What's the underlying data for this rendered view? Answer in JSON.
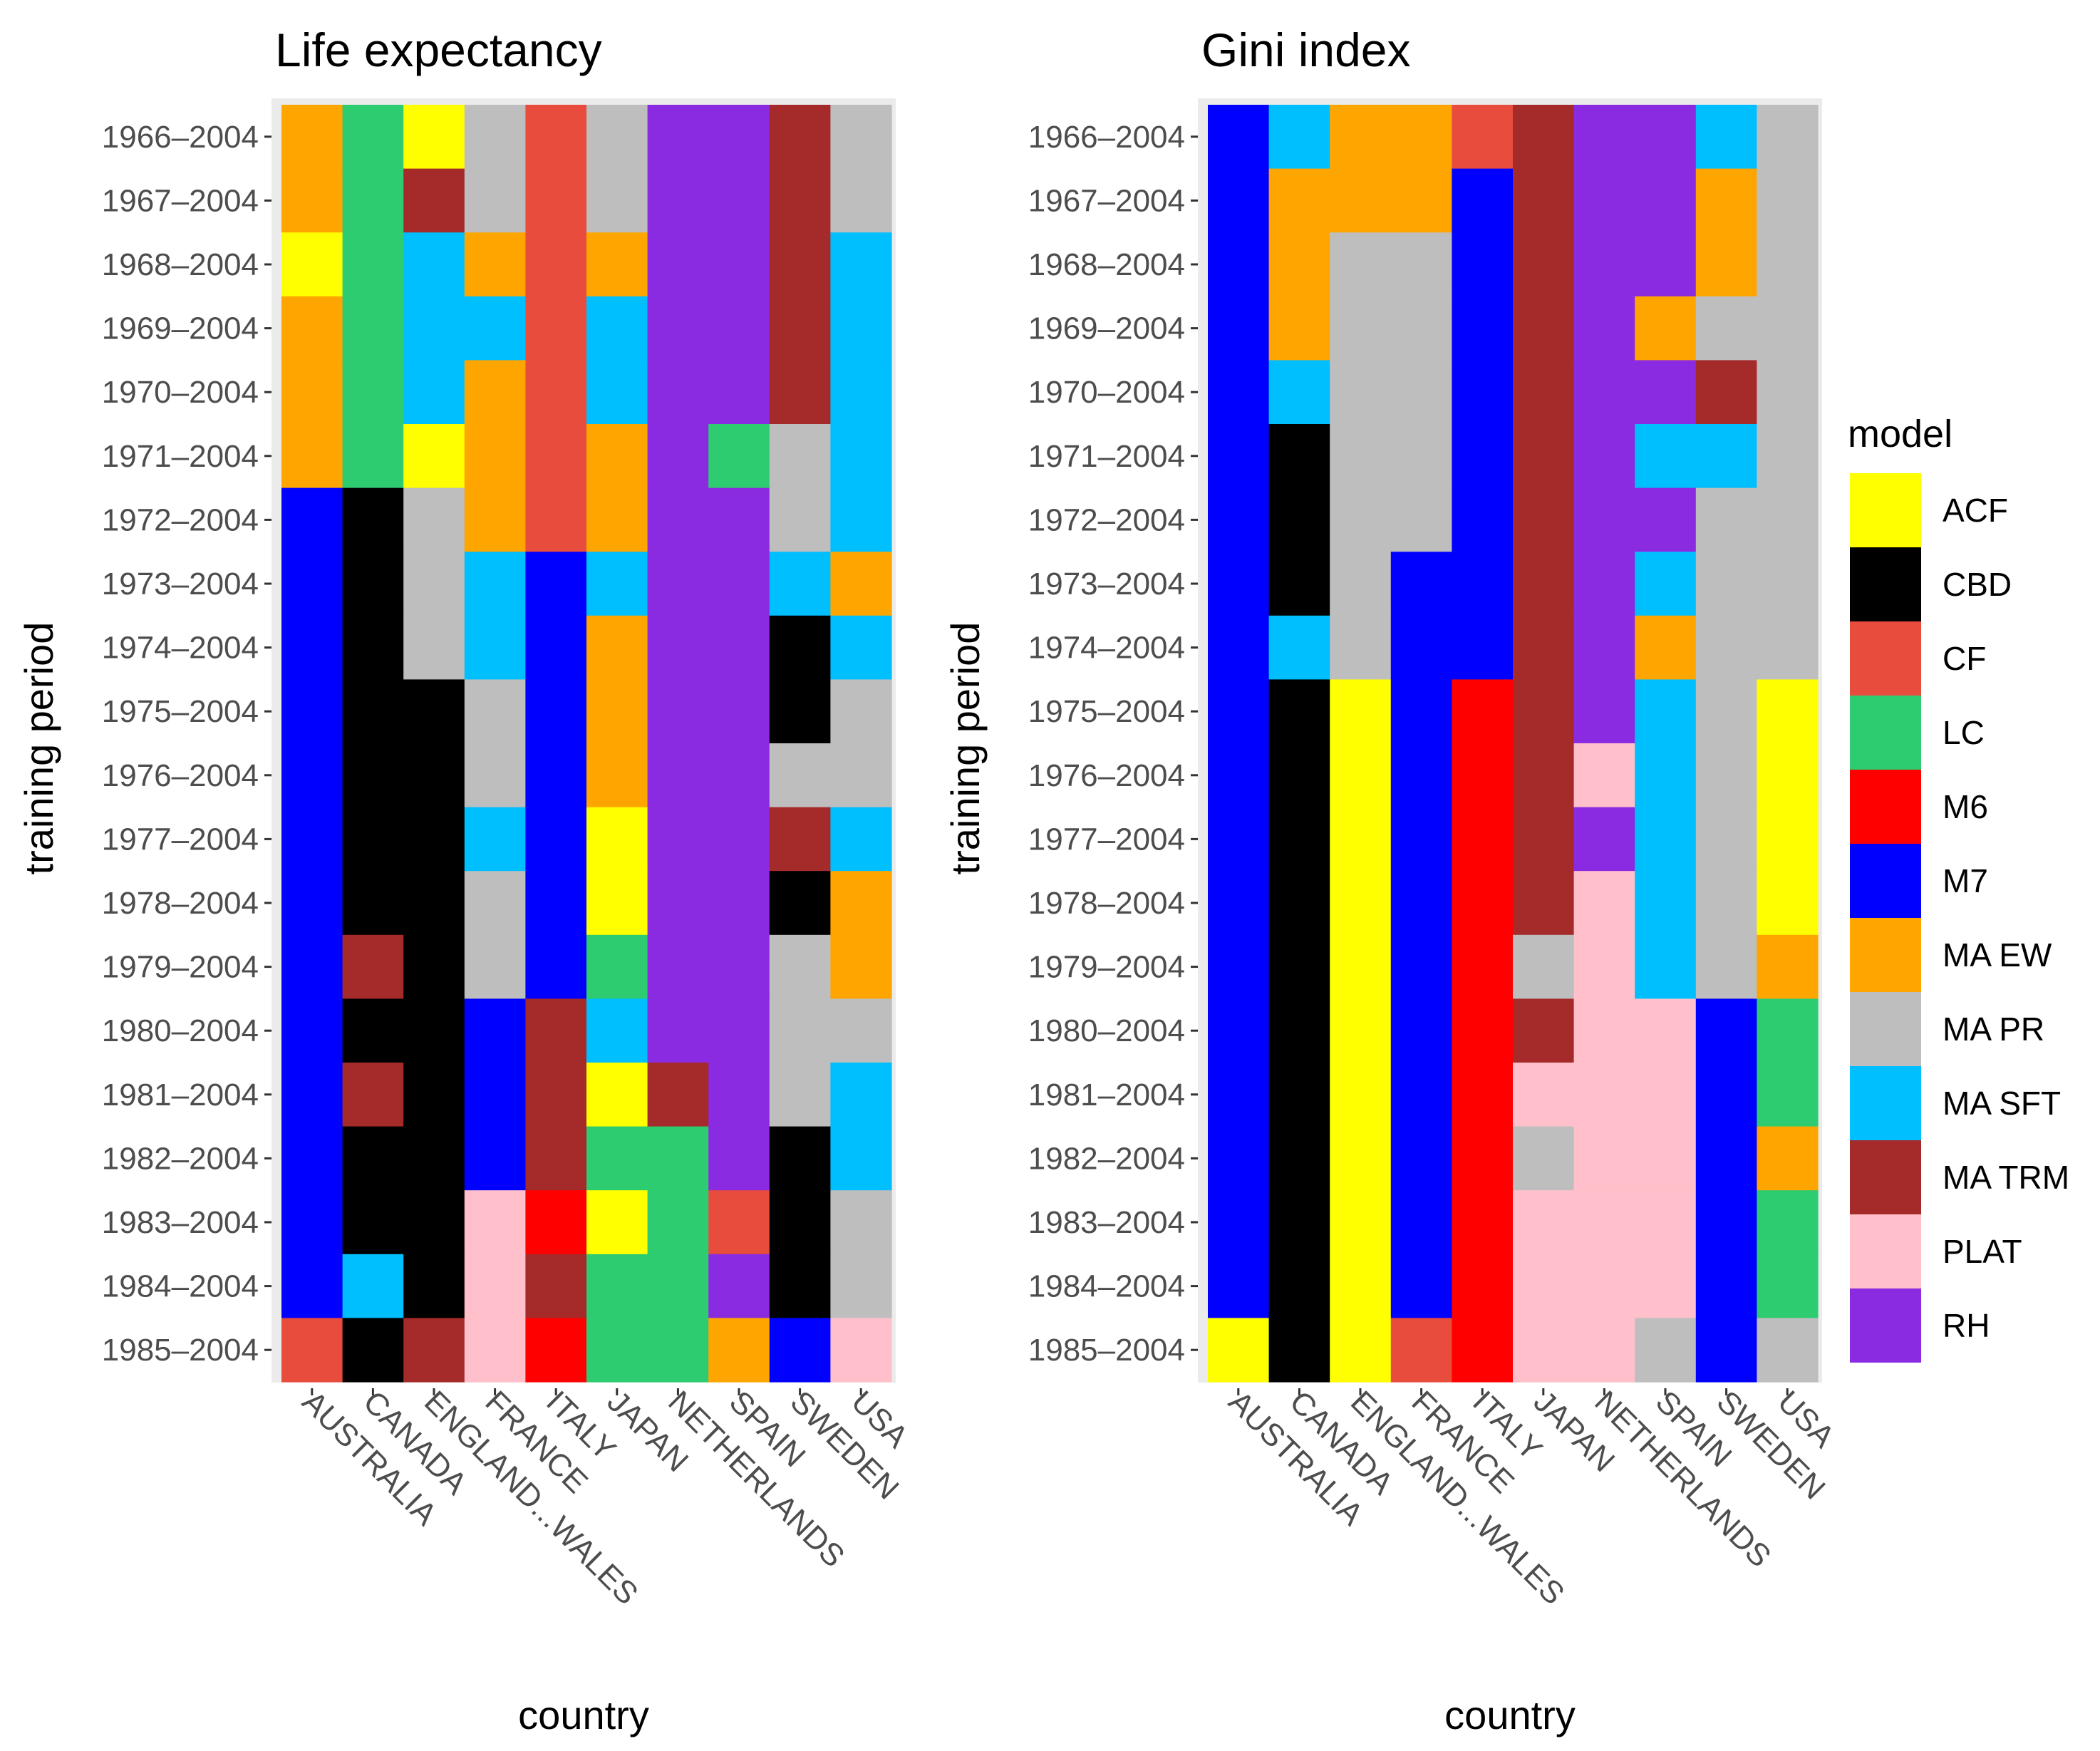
{
  "chart_data": [
    {
      "type": "heatmap",
      "title": "Life expectancy",
      "xlabel": "country",
      "ylabel": "training period",
      "countries": [
        "AUSTRALIA",
        "CANADA",
        "ENGLAND...WALES",
        "FRANCE",
        "ITALY",
        "JAPAN",
        "NETHERLANDS",
        "SPAIN",
        "SWEDEN",
        "USA"
      ],
      "periods": [
        "1966–2004",
        "1967–2004",
        "1968–2004",
        "1969–2004",
        "1970–2004",
        "1971–2004",
        "1972–2004",
        "1973–2004",
        "1974–2004",
        "1975–2004",
        "1976–2004",
        "1977–2004",
        "1978–2004",
        "1979–2004",
        "1980–2004",
        "1981–2004",
        "1982–2004",
        "1983–2004",
        "1984–2004",
        "1985–2004"
      ],
      "cells": [
        [
          "MA EW",
          "LC",
          "ACF",
          "MA PR",
          "CF",
          "MA PR",
          "RH",
          "RH",
          "MA TRM",
          "MA PR"
        ],
        [
          "MA EW",
          "LC",
          "MA TRM",
          "MA PR",
          "CF",
          "MA PR",
          "RH",
          "RH",
          "MA TRM",
          "MA PR"
        ],
        [
          "ACF",
          "LC",
          "MA SFT",
          "MA EW",
          "CF",
          "MA EW",
          "RH",
          "RH",
          "MA TRM",
          "MA SFT"
        ],
        [
          "MA EW",
          "LC",
          "MA SFT",
          "MA SFT",
          "CF",
          "MA SFT",
          "RH",
          "RH",
          "MA TRM",
          "MA SFT"
        ],
        [
          "MA EW",
          "LC",
          "MA SFT",
          "MA EW",
          "CF",
          "MA SFT",
          "RH",
          "RH",
          "MA TRM",
          "MA SFT"
        ],
        [
          "MA EW",
          "LC",
          "ACF",
          "MA EW",
          "CF",
          "MA EW",
          "RH",
          "LC",
          "MA PR",
          "MA SFT"
        ],
        [
          "M7",
          "CBD",
          "MA PR",
          "MA EW",
          "CF",
          "MA EW",
          "RH",
          "RH",
          "MA PR",
          "MA SFT"
        ],
        [
          "M7",
          "CBD",
          "MA PR",
          "MA SFT",
          "M7",
          "MA SFT",
          "RH",
          "RH",
          "MA SFT",
          "MA EW"
        ],
        [
          "M7",
          "CBD",
          "MA PR",
          "MA SFT",
          "M7",
          "MA EW",
          "RH",
          "RH",
          "CBD",
          "MA SFT"
        ],
        [
          "M7",
          "CBD",
          "CBD",
          "MA PR",
          "M7",
          "MA EW",
          "RH",
          "RH",
          "CBD",
          "MA PR"
        ],
        [
          "M7",
          "CBD",
          "CBD",
          "MA PR",
          "M7",
          "MA EW",
          "RH",
          "RH",
          "MA PR",
          "MA PR"
        ],
        [
          "M7",
          "CBD",
          "CBD",
          "MA SFT",
          "M7",
          "ACF",
          "RH",
          "RH",
          "MA TRM",
          "MA SFT"
        ],
        [
          "M7",
          "CBD",
          "CBD",
          "MA PR",
          "M7",
          "ACF",
          "RH",
          "RH",
          "CBD",
          "MA EW"
        ],
        [
          "M7",
          "MA TRM",
          "CBD",
          "MA PR",
          "M7",
          "LC",
          "RH",
          "RH",
          "MA PR",
          "MA EW"
        ],
        [
          "M7",
          "CBD",
          "CBD",
          "M7",
          "MA TRM",
          "MA SFT",
          "RH",
          "RH",
          "MA PR",
          "MA PR"
        ],
        [
          "M7",
          "MA TRM",
          "CBD",
          "M7",
          "MA TRM",
          "ACF",
          "MA TRM",
          "RH",
          "MA PR",
          "MA SFT"
        ],
        [
          "M7",
          "CBD",
          "CBD",
          "M7",
          "MA TRM",
          "LC",
          "LC",
          "RH",
          "CBD",
          "MA SFT"
        ],
        [
          "M7",
          "CBD",
          "CBD",
          "PLAT",
          "M6",
          "ACF",
          "LC",
          "CF",
          "CBD",
          "MA PR"
        ],
        [
          "M7",
          "MA SFT",
          "CBD",
          "PLAT",
          "MA TRM",
          "LC",
          "LC",
          "RH",
          "CBD",
          "MA PR"
        ],
        [
          "CF",
          "CBD",
          "MA TRM",
          "PLAT",
          "M6",
          "LC",
          "LC",
          "MA EW",
          "M7",
          "PLAT"
        ]
      ]
    },
    {
      "type": "heatmap",
      "title": "Gini index",
      "xlabel": "country",
      "ylabel": "training period",
      "countries": [
        "AUSTRALIA",
        "CANADA",
        "ENGLAND...WALES",
        "FRANCE",
        "ITALY",
        "JAPAN",
        "NETHERLANDS",
        "SPAIN",
        "SWEDEN",
        "USA"
      ],
      "periods": [
        "1966–2004",
        "1967–2004",
        "1968–2004",
        "1969–2004",
        "1970–2004",
        "1971–2004",
        "1972–2004",
        "1973–2004",
        "1974–2004",
        "1975–2004",
        "1976–2004",
        "1977–2004",
        "1978–2004",
        "1979–2004",
        "1980–2004",
        "1981–2004",
        "1982–2004",
        "1983–2004",
        "1984–2004",
        "1985–2004"
      ],
      "cells": [
        [
          "M7",
          "MA SFT",
          "MA EW",
          "MA EW",
          "CF",
          "MA TRM",
          "RH",
          "RH",
          "MA SFT",
          "MA PR"
        ],
        [
          "M7",
          "MA EW",
          "MA EW",
          "MA EW",
          "M7",
          "MA TRM",
          "RH",
          "RH",
          "MA EW",
          "MA PR"
        ],
        [
          "M7",
          "MA EW",
          "MA PR",
          "MA PR",
          "M7",
          "MA TRM",
          "RH",
          "RH",
          "MA EW",
          "MA PR"
        ],
        [
          "M7",
          "MA EW",
          "MA PR",
          "MA PR",
          "M7",
          "MA TRM",
          "RH",
          "MA EW",
          "MA PR",
          "MA PR"
        ],
        [
          "M7",
          "MA SFT",
          "MA PR",
          "MA PR",
          "M7",
          "MA TRM",
          "RH",
          "RH",
          "MA TRM",
          "MA PR"
        ],
        [
          "M7",
          "CBD",
          "MA PR",
          "MA PR",
          "M7",
          "MA TRM",
          "RH",
          "MA SFT",
          "MA SFT",
          "MA PR"
        ],
        [
          "M7",
          "CBD",
          "MA PR",
          "MA PR",
          "M7",
          "MA TRM",
          "RH",
          "RH",
          "MA PR",
          "MA PR"
        ],
        [
          "M7",
          "CBD",
          "MA PR",
          "M7",
          "M7",
          "MA TRM",
          "RH",
          "MA SFT",
          "MA PR",
          "MA PR"
        ],
        [
          "M7",
          "MA SFT",
          "MA PR",
          "M7",
          "M7",
          "MA TRM",
          "RH",
          "MA EW",
          "MA PR",
          "MA PR"
        ],
        [
          "M7",
          "CBD",
          "ACF",
          "M7",
          "M6",
          "MA TRM",
          "RH",
          "MA SFT",
          "MA PR",
          "ACF"
        ],
        [
          "M7",
          "CBD",
          "ACF",
          "M7",
          "M6",
          "MA TRM",
          "PLAT",
          "MA SFT",
          "MA PR",
          "ACF"
        ],
        [
          "M7",
          "CBD",
          "ACF",
          "M7",
          "M6",
          "MA TRM",
          "RH",
          "MA SFT",
          "MA PR",
          "ACF"
        ],
        [
          "M7",
          "CBD",
          "ACF",
          "M7",
          "M6",
          "MA TRM",
          "PLAT",
          "MA SFT",
          "MA PR",
          "ACF"
        ],
        [
          "M7",
          "CBD",
          "ACF",
          "M7",
          "M6",
          "MA PR",
          "PLAT",
          "MA SFT",
          "MA PR",
          "MA EW"
        ],
        [
          "M7",
          "CBD",
          "ACF",
          "M7",
          "M6",
          "MA TRM",
          "PLAT",
          "PLAT",
          "M7",
          "LC"
        ],
        [
          "M7",
          "CBD",
          "ACF",
          "M7",
          "M6",
          "PLAT",
          "PLAT",
          "PLAT",
          "M7",
          "LC"
        ],
        [
          "M7",
          "CBD",
          "ACF",
          "M7",
          "M6",
          "MA PR",
          "PLAT",
          "PLAT",
          "M7",
          "MA EW"
        ],
        [
          "M7",
          "CBD",
          "ACF",
          "M7",
          "M6",
          "PLAT",
          "PLAT",
          "PLAT",
          "M7",
          "LC"
        ],
        [
          "M7",
          "CBD",
          "ACF",
          "M7",
          "M6",
          "PLAT",
          "PLAT",
          "PLAT",
          "M7",
          "LC"
        ],
        [
          "ACF",
          "CBD",
          "ACF",
          "CF",
          "M6",
          "PLAT",
          "PLAT",
          "MA PR",
          "M7",
          "MA PR"
        ]
      ]
    }
  ],
  "legend": {
    "title": "model",
    "items": [
      {
        "label": "ACF",
        "color": "#FFFF00"
      },
      {
        "label": "CBD",
        "color": "#000000"
      },
      {
        "label": "CF",
        "color": "#E84C3D"
      },
      {
        "label": "LC",
        "color": "#2ECC71"
      },
      {
        "label": "M6",
        "color": "#FF0000"
      },
      {
        "label": "M7",
        "color": "#0000FF"
      },
      {
        "label": "MA EW",
        "color": "#FFA500"
      },
      {
        "label": "MA PR",
        "color": "#BEBEBE"
      },
      {
        "label": "MA SFT",
        "color": "#00BFFF"
      },
      {
        "label": "MA TRM",
        "color": "#A52A2A"
      },
      {
        "label": "PLAT",
        "color": "#FFC0CB"
      },
      {
        "label": "RH",
        "color": "#8A2BE2"
      }
    ]
  }
}
